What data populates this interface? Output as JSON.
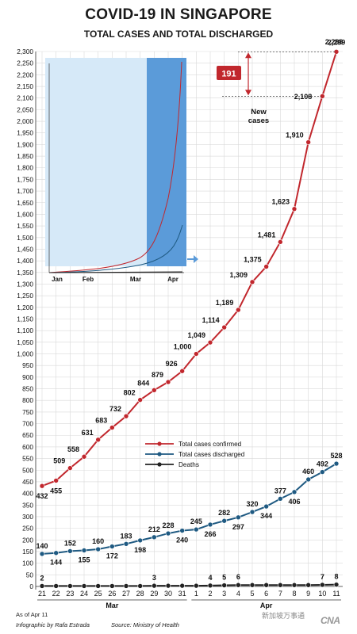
{
  "title": "COVID-19 IN SINGAPORE",
  "subtitle": "TOTAL CASES AND TOTAL DISCHARGED",
  "footer": {
    "as_of": "As of Apr 11",
    "credit": "Infographic by Rafa Estrada",
    "source": "Source: Ministry of Health",
    "logo_text": "CNA",
    "watermark": "新加坡万事通"
  },
  "colors": {
    "confirmed": "#c1272d",
    "discharged": "#1f5a82",
    "deaths": "#222222",
    "grid": "#d9d9d9",
    "inset_light": "#d6e9f8",
    "inset_dark": "#5b9bd9",
    "callout": "#c1272d"
  },
  "callout": {
    "new_cases_value": "191",
    "new_cases_label": "New cases",
    "top_value": "2,299",
    "prev_value": "2,108"
  },
  "inset": {
    "months": [
      "Jan",
      "Feb",
      "Mar",
      "Apr"
    ]
  },
  "chart_data": {
    "type": "line",
    "title": "TOTAL CASES AND TOTAL DISCHARGED",
    "ylim": [
      0,
      2300
    ],
    "ytick_step": 50,
    "grid": true,
    "legend_position": "center-right",
    "x": [
      "21",
      "22",
      "23",
      "24",
      "25",
      "26",
      "27",
      "28",
      "29",
      "30",
      "31",
      "1",
      "2",
      "3",
      "4",
      "5",
      "6",
      "7",
      "8",
      "9",
      "10",
      "11"
    ],
    "x_groups": [
      {
        "label": "Mar",
        "from": "21",
        "to": "31"
      },
      {
        "label": "Apr",
        "from": "1",
        "to": "11"
      }
    ],
    "series": [
      {
        "name": "Total cases confirmed",
        "color_key": "confirmed",
        "values": [
          432,
          455,
          509,
          558,
          631,
          683,
          732,
          802,
          844,
          879,
          926,
          1000,
          1049,
          1114,
          1189,
          1309,
          1375,
          1481,
          1623,
          1910,
          2108,
          2299
        ],
        "labels": [
          "432",
          "455",
          "509",
          "558",
          "631",
          "683",
          "732",
          "802",
          "844",
          "879",
          "926",
          "1,000",
          "1,049",
          "1,114",
          "1,189",
          "1,309",
          "1,375",
          "1,481",
          "1,623",
          "1,910",
          "2,108",
          "2,299"
        ],
        "label_pos": [
          "below",
          "below",
          "above",
          "above",
          "above",
          "above",
          "above",
          "above",
          "above",
          "above",
          "above",
          "above",
          "above",
          "above",
          "above",
          "above",
          "above",
          "above",
          "above",
          "above",
          "",
          "above"
        ]
      },
      {
        "name": "Total cases discharged",
        "color_key": "discharged",
        "values": [
          140,
          144,
          152,
          155,
          160,
          172,
          183,
          198,
          212,
          228,
          240,
          245,
          266,
          282,
          297,
          320,
          344,
          377,
          406,
          460,
          492,
          528
        ],
        "labels": [
          "140",
          "144",
          "152",
          "155",
          "160",
          "172",
          "183",
          "198",
          "212",
          "228",
          "240",
          "245",
          "266",
          "282",
          "297",
          "320",
          "344",
          "377",
          "406",
          "460",
          "492",
          "528"
        ],
        "label_pos": [
          "above",
          "below",
          "above",
          "below",
          "above",
          "below",
          "above",
          "below",
          "above",
          "above",
          "below",
          "above",
          "below",
          "above",
          "below",
          "above",
          "below",
          "above",
          "below",
          "above",
          "above",
          "above"
        ]
      },
      {
        "name": "Deaths",
        "color_key": "deaths",
        "values": [
          2,
          2,
          2,
          2,
          2,
          2,
          2,
          2,
          3,
          3,
          3,
          3,
          4,
          5,
          6,
          6,
          6,
          6,
          6,
          6,
          7,
          8
        ],
        "labels": [
          "2",
          "",
          "",
          "",
          "",
          "",
          "",
          "",
          "3",
          "",
          "",
          "",
          "4",
          "5",
          "6",
          "",
          "",
          "",
          "",
          "",
          "7",
          "8"
        ],
        "label_pos": [
          "above",
          "",
          "",
          "",
          "",
          "",
          "",
          "",
          "above",
          "",
          "",
          "",
          "above",
          "above",
          "above",
          "",
          "",
          "",
          "",
          "",
          "above",
          "above"
        ]
      }
    ]
  }
}
